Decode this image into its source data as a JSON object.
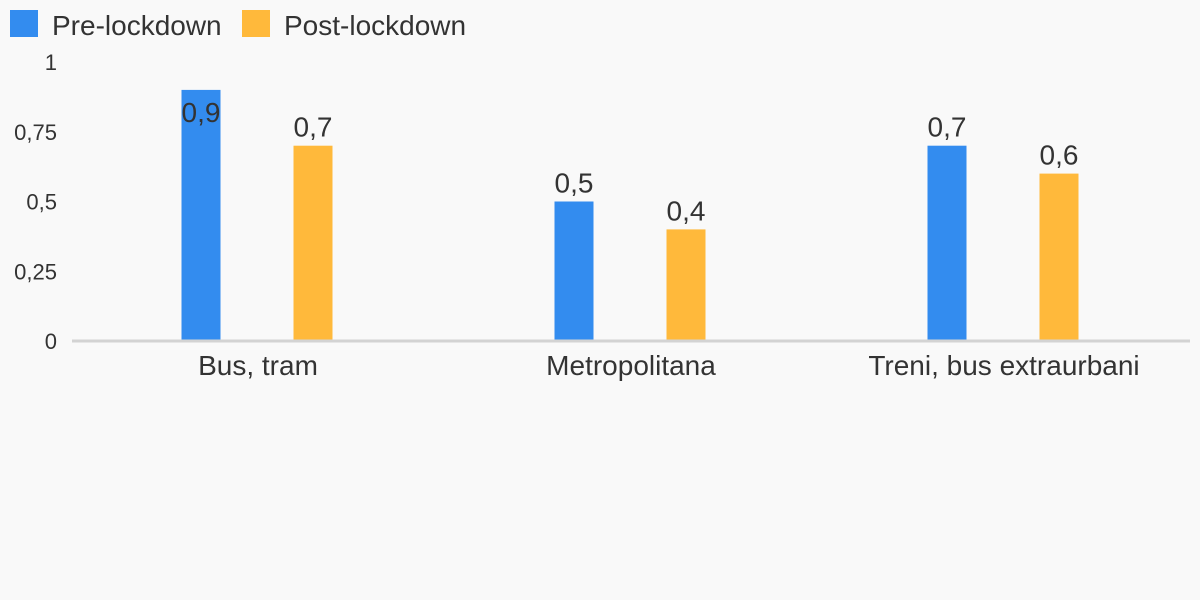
{
  "chart_data": {
    "type": "bar",
    "title": "",
    "xlabel": "",
    "ylabel": "",
    "categories": [
      "Bus, tram",
      "Metropolitana",
      "Treni, bus extraurbani"
    ],
    "series": [
      {
        "name": "Pre-lockdown",
        "color": "#338CEF",
        "values": [
          0.9,
          0.5,
          0.7
        ],
        "labels": [
          "0,9",
          "0,5",
          "0,7"
        ]
      },
      {
        "name": "Post-lockdown",
        "color": "#FFB93B",
        "values": [
          0.7,
          0.4,
          0.6
        ],
        "labels": [
          "0,7",
          "0,4",
          "0,6"
        ]
      }
    ],
    "ylim": [
      0,
      1
    ],
    "yticks": [
      {
        "value": 0,
        "label": "0"
      },
      {
        "value": 0.25,
        "label": "0,25"
      },
      {
        "value": 0.5,
        "label": "0,5"
      },
      {
        "value": 0.75,
        "label": "0,75"
      },
      {
        "value": 1,
        "label": "1"
      }
    ],
    "grid": false,
    "legend": "top-left",
    "baseline_color": "#D3D3D3"
  }
}
